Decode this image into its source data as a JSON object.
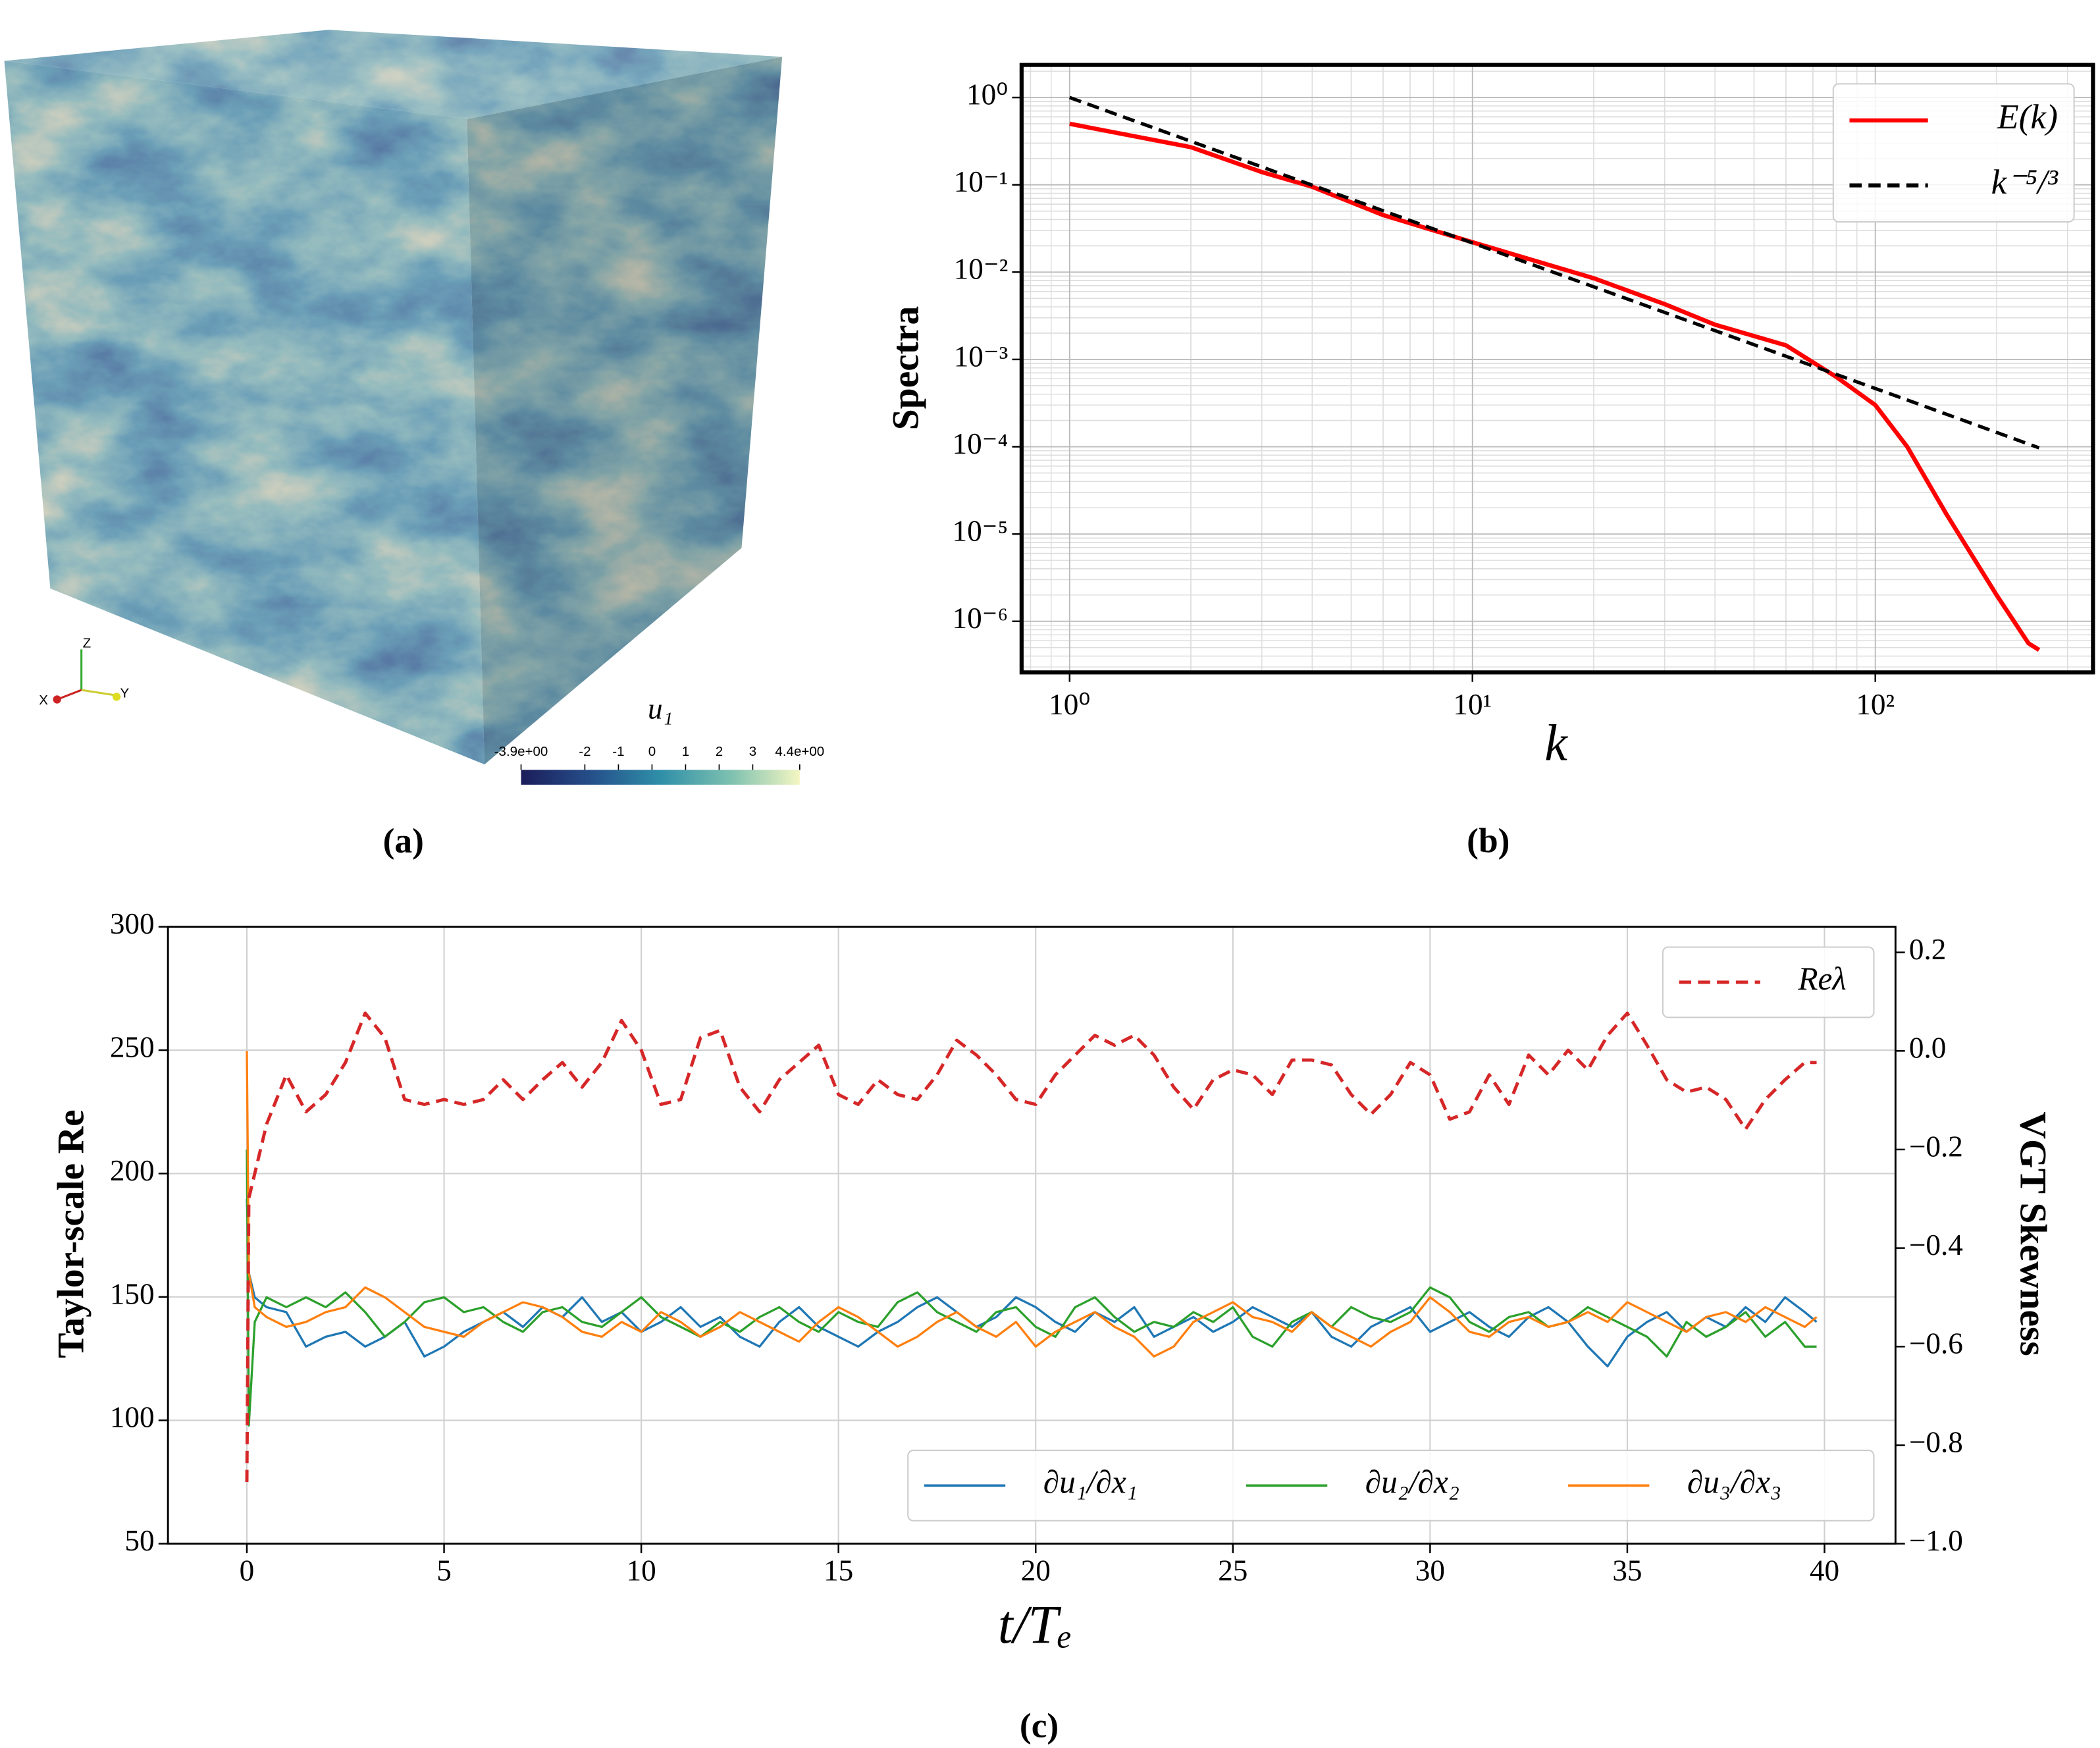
{
  "chart_data": [
    {
      "type": "volume",
      "caption": "(a)",
      "colorbar_label": "u₁",
      "clim": [
        -3.9,
        4.4
      ],
      "colorbar_ticks": [
        {
          "value": -3.9,
          "label": "-3.9e+00"
        },
        -2,
        -1,
        0,
        1,
        2,
        3,
        {
          "value": 4.4,
          "label": "4.4e+00"
        }
      ],
      "colormap": [
        "#1b1d5a",
        "#254f8a",
        "#2f8fa8",
        "#7cc0b0",
        "#f4f6c2"
      ],
      "axes_labels": [
        "X",
        "Y",
        "Z"
      ]
    },
    {
      "type": "line",
      "caption": "(b)",
      "xlabel": "k",
      "ylabel": "Spectra",
      "xlog": true,
      "ylog": true,
      "xlim": [
        0.76,
        347
      ],
      "ylim": [
        2.6e-07,
        2.36
      ],
      "xticks": [
        {
          "value": 1,
          "label": "10⁰"
        },
        {
          "value": 10,
          "label": "10¹"
        },
        {
          "value": 100,
          "label": "10²"
        }
      ],
      "yticks": [
        {
          "value": 1e-06,
          "label": "10⁻⁶"
        },
        {
          "value": 1e-05,
          "label": "10⁻⁵"
        },
        {
          "value": 0.0001,
          "label": "10⁻⁴"
        },
        {
          "value": 0.001,
          "label": "10⁻³"
        },
        {
          "value": 0.01,
          "label": "10⁻²"
        },
        {
          "value": 0.1,
          "label": "10⁻¹"
        },
        {
          "value": 1,
          "label": "10⁰"
        }
      ],
      "grid": true,
      "minor_grid": true,
      "legend": "upper right",
      "series": [
        {
          "name": "E(k)",
          "color": "#ff0000",
          "style": "solid",
          "x": [
            1,
            2,
            3,
            4,
            6,
            10,
            20,
            30,
            40,
            60,
            80,
            100,
            120,
            150,
            200,
            240,
            255
          ],
          "values": [
            0.5,
            0.27,
            0.14,
            0.095,
            0.045,
            0.022,
            0.0085,
            0.0043,
            0.0025,
            0.00145,
            0.00063,
            0.0003,
            0.0001,
            1.7e-05,
            2e-06,
            5.6e-07,
            4.7e-07
          ]
        },
        {
          "name": "k⁻⁵/³",
          "color": "#000000",
          "style": "dashed",
          "x": [
            1,
            2,
            4,
            8,
            16,
            32,
            64,
            128,
            255
          ],
          "values": [
            1,
            0.315,
            0.0992,
            0.03125,
            0.00984,
            0.0031,
            0.000977,
            0.000308,
            9.7e-05
          ]
        }
      ]
    },
    {
      "type": "dual_line",
      "caption": "(c)",
      "xlabel": "t/Tₑ",
      "ylabel": "Taylor-scale Re",
      "y2label": "VGT Skewness",
      "xlim": [
        -2,
        41.8
      ],
      "ylim": [
        50,
        300
      ],
      "y2lim": [
        -1.0,
        0.252
      ],
      "xticks": [
        0,
        5,
        10,
        15,
        20,
        25,
        30,
        35,
        40
      ],
      "yticks": [
        50,
        100,
        150,
        200,
        250,
        300
      ],
      "y2ticks": [
        0.2,
        {
          "value": 0,
          "label": "0.0"
        },
        {
          "value": -0.2,
          "label": "−0.2"
        },
        {
          "value": -0.4,
          "label": "−0.4"
        },
        {
          "value": -0.6,
          "label": "−0.6"
        },
        {
          "value": -0.8,
          "label": "−0.8"
        },
        {
          "value": -1.0,
          "label": "−1.0"
        }
      ],
      "grid": true,
      "legend": {
        "y": "upper right",
        "y2": "lower right"
      },
      "x": [
        0,
        0.05,
        0.2,
        0.5,
        1,
        1.5,
        2,
        2.5,
        3,
        3.5,
        4,
        4.5,
        5,
        5.5,
        6,
        6.5,
        7,
        7.5,
        8,
        8.5,
        9,
        9.5,
        10,
        10.5,
        11,
        11.5,
        12,
        12.5,
        13,
        13.5,
        14,
        14.5,
        15,
        15.5,
        16,
        16.5,
        17,
        17.5,
        18,
        18.5,
        19,
        19.5,
        20,
        20.5,
        21,
        21.5,
        22,
        22.5,
        23,
        23.5,
        24,
        24.5,
        25,
        25.5,
        26,
        26.5,
        27,
        27.5,
        28,
        28.5,
        29,
        29.5,
        30,
        30.5,
        31,
        31.5,
        32,
        32.5,
        33,
        33.5,
        34,
        34.5,
        35,
        35.5,
        36,
        36.5,
        37,
        37.5,
        38,
        38.5,
        39,
        39.5,
        39.8
      ],
      "series": [
        {
          "name": "Reλ",
          "color": "#d62728",
          "style": "dashed",
          "axis": "y",
          "values": [
            75,
            190,
            200,
            220,
            240,
            225,
            232,
            245,
            265,
            255,
            230,
            228,
            230,
            228,
            230,
            238,
            230,
            238,
            245,
            235,
            245,
            262,
            250,
            228,
            230,
            255,
            258,
            235,
            225,
            238,
            245,
            252,
            232,
            228,
            238,
            232,
            230,
            240,
            254,
            248,
            240,
            230,
            228,
            240,
            248,
            256,
            252,
            256,
            248,
            235,
            226,
            238,
            242,
            240,
            232,
            246,
            246,
            244,
            232,
            224,
            232,
            245,
            240,
            222,
            225,
            240,
            228,
            248,
            240,
            250,
            242,
            256,
            265,
            252,
            238,
            233,
            235,
            230,
            218,
            230,
            238,
            245,
            245
          ]
        },
        {
          "name": "∂u₁/∂x₁",
          "color": "#1f77b4",
          "style": "solid",
          "axis": "y2",
          "values": [
            -0.3,
            -0.45,
            -0.5,
            -0.52,
            -0.53,
            -0.6,
            -0.58,
            -0.57,
            -0.6,
            -0.58,
            -0.55,
            -0.62,
            -0.6,
            -0.57,
            -0.55,
            -0.53,
            -0.56,
            -0.52,
            -0.54,
            -0.5,
            -0.55,
            -0.53,
            -0.57,
            -0.55,
            -0.52,
            -0.56,
            -0.54,
            -0.58,
            -0.6,
            -0.55,
            -0.52,
            -0.56,
            -0.58,
            -0.6,
            -0.57,
            -0.55,
            -0.52,
            -0.5,
            -0.53,
            -0.56,
            -0.54,
            -0.5,
            -0.52,
            -0.55,
            -0.57,
            -0.53,
            -0.55,
            -0.52,
            -0.58,
            -0.56,
            -0.54,
            -0.57,
            -0.55,
            -0.52,
            -0.54,
            -0.56,
            -0.53,
            -0.58,
            -0.6,
            -0.56,
            -0.54,
            -0.52,
            -0.57,
            -0.55,
            -0.53,
            -0.56,
            -0.58,
            -0.54,
            -0.52,
            -0.55,
            -0.6,
            -0.64,
            -0.58,
            -0.55,
            -0.53,
            -0.57,
            -0.54,
            -0.56,
            -0.52,
            -0.55,
            -0.5,
            -0.53,
            -0.55
          ]
        },
        {
          "name": "∂u₂/∂x₂",
          "color": "#2ca02c",
          "style": "solid",
          "axis": "y2",
          "values": [
            -0.2,
            -0.76,
            -0.55,
            -0.5,
            -0.52,
            -0.5,
            -0.52,
            -0.49,
            -0.53,
            -0.58,
            -0.55,
            -0.51,
            -0.5,
            -0.53,
            -0.52,
            -0.55,
            -0.57,
            -0.53,
            -0.52,
            -0.55,
            -0.56,
            -0.53,
            -0.5,
            -0.54,
            -0.56,
            -0.58,
            -0.55,
            -0.57,
            -0.54,
            -0.52,
            -0.55,
            -0.57,
            -0.53,
            -0.55,
            -0.56,
            -0.51,
            -0.49,
            -0.53,
            -0.55,
            -0.57,
            -0.53,
            -0.52,
            -0.56,
            -0.58,
            -0.52,
            -0.5,
            -0.54,
            -0.57,
            -0.55,
            -0.56,
            -0.53,
            -0.55,
            -0.52,
            -0.58,
            -0.6,
            -0.55,
            -0.53,
            -0.56,
            -0.52,
            -0.54,
            -0.55,
            -0.53,
            -0.48,
            -0.5,
            -0.55,
            -0.57,
            -0.54,
            -0.53,
            -0.56,
            -0.55,
            -0.52,
            -0.54,
            -0.56,
            -0.58,
            -0.62,
            -0.55,
            -0.58,
            -0.56,
            -0.53,
            -0.58,
            -0.55,
            -0.6,
            -0.6
          ]
        },
        {
          "name": "∂u₃/∂x₃",
          "color": "#ff7f0e",
          "style": "solid",
          "axis": "y2",
          "values": [
            0.0,
            -0.45,
            -0.52,
            -0.54,
            -0.56,
            -0.55,
            -0.53,
            -0.52,
            -0.48,
            -0.5,
            -0.53,
            -0.56,
            -0.57,
            -0.58,
            -0.55,
            -0.53,
            -0.51,
            -0.52,
            -0.54,
            -0.57,
            -0.58,
            -0.55,
            -0.57,
            -0.53,
            -0.55,
            -0.58,
            -0.56,
            -0.53,
            -0.55,
            -0.57,
            -0.59,
            -0.55,
            -0.52,
            -0.54,
            -0.57,
            -0.6,
            -0.58,
            -0.55,
            -0.53,
            -0.56,
            -0.58,
            -0.55,
            -0.6,
            -0.57,
            -0.55,
            -0.53,
            -0.56,
            -0.58,
            -0.62,
            -0.6,
            -0.55,
            -0.53,
            -0.51,
            -0.54,
            -0.55,
            -0.57,
            -0.53,
            -0.56,
            -0.58,
            -0.6,
            -0.57,
            -0.55,
            -0.5,
            -0.53,
            -0.57,
            -0.58,
            -0.55,
            -0.54,
            -0.56,
            -0.55,
            -0.53,
            -0.55,
            -0.51,
            -0.53,
            -0.55,
            -0.57,
            -0.54,
            -0.53,
            -0.55,
            -0.52,
            -0.54,
            -0.56,
            -0.54
          ]
        }
      ]
    }
  ]
}
